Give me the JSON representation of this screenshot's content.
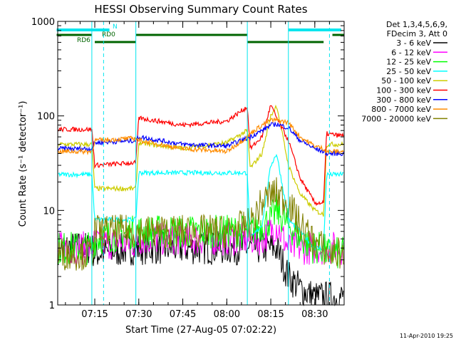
{
  "chart_data": {
    "type": "line",
    "title": "HESSI Observing Summary Count Rates",
    "xlabel": "Start Time (27-Aug-05 07:02:22)",
    "ylabel": "Count Rate (s⁻¹ detector⁻¹)",
    "footer": "11-Apr-2010 19:25",
    "y_scale": "log",
    "ylim": [
      1,
      1000
    ],
    "xlim": [
      "07:02:22",
      "08:40:00"
    ],
    "x_ticks": [
      "07:15",
      "07:30",
      "07:45",
      "08:00",
      "08:15",
      "08:30"
    ],
    "y_ticks": [
      "1",
      "10",
      "100",
      "1000"
    ],
    "grid": false,
    "legend_position": "right",
    "legend_header": [
      "Det 1,3,4,5,6,9,",
      "FDecim 3, Att 0"
    ],
    "flags": [
      {
        "label": "N",
        "color": "#00e5ee",
        "intervals": [
          [
            "07:02",
            "07:20"
          ],
          [
            "08:21",
            "08:39"
          ]
        ]
      },
      {
        "label": "RD0",
        "color": "#006400",
        "intervals": [
          [
            "07:02",
            "07:14"
          ],
          [
            "07:29",
            "08:07"
          ],
          [
            "08:36",
            "08:40"
          ]
        ]
      },
      {
        "label": "RD6",
        "color": "#006400",
        "intervals": [
          [
            "07:15",
            "07:29"
          ],
          [
            "08:07",
            "08:33"
          ]
        ]
      }
    ],
    "markers": [
      {
        "time": "07:18",
        "color": "#00e5ee",
        "style": "dashed"
      },
      {
        "time": "08:35",
        "color": "#00e5ee",
        "style": "dashed"
      },
      {
        "time": "07:14",
        "color": "#00e5ee",
        "style": "solid"
      },
      {
        "time": "07:29",
        "color": "#00e5ee",
        "style": "solid"
      },
      {
        "time": "08:07",
        "color": "#00e5ee",
        "style": "solid"
      },
      {
        "time": "08:21",
        "color": "#00e5ee",
        "style": "solid"
      }
    ],
    "x": [
      "07:02",
      "07:14",
      "07:15",
      "07:29",
      "07:30",
      "07:45",
      "08:00",
      "08:07",
      "08:08",
      "08:12",
      "08:15",
      "08:17",
      "08:21",
      "08:25",
      "08:30",
      "08:33",
      "08:34",
      "08:38"
    ],
    "series": [
      {
        "name": "3 - 6 keV",
        "color": "#000000",
        "values": [
          4,
          4,
          3.5,
          4,
          4,
          4,
          4,
          4,
          4,
          4,
          4,
          4,
          2,
          1.5,
          1.2,
          1.2,
          1.2,
          1.2
        ]
      },
      {
        "name": "6 - 12 keV",
        "color": "#ff00ff",
        "values": [
          4,
          4,
          4.5,
          4.5,
          5,
          5,
          5,
          5,
          5,
          5,
          6,
          7,
          4,
          4,
          4,
          4,
          4,
          4
        ]
      },
      {
        "name": "12 - 25 keV",
        "color": "#00ff00",
        "values": [
          4,
          4,
          5,
          6,
          6,
          6,
          6,
          6,
          6,
          7,
          8,
          10,
          7,
          5,
          4,
          4,
          3.5,
          3.5
        ]
      },
      {
        "name": "25 - 50 keV",
        "color": "#00ffff",
        "values": [
          24,
          24,
          8,
          8,
          25,
          25,
          25,
          25,
          5,
          7,
          30,
          40,
          8,
          6,
          4,
          4,
          24,
          24
        ]
      },
      {
        "name": "50 - 100 keV",
        "color": "#cccc00",
        "values": [
          50,
          50,
          17,
          17,
          52,
          45,
          52,
          70,
          28,
          40,
          100,
          130,
          30,
          15,
          10,
          9,
          50,
          50
        ]
      },
      {
        "name": "100 - 300 keV",
        "color": "#ff0000",
        "values": [
          72,
          72,
          30,
          32,
          95,
          80,
          88,
          125,
          45,
          60,
          130,
          95,
          55,
          22,
          12,
          12,
          65,
          62
        ]
      },
      {
        "name": "300 - 800 keV",
        "color": "#0000ff",
        "values": [
          45,
          45,
          52,
          55,
          60,
          50,
          48,
          58,
          60,
          70,
          80,
          82,
          75,
          55,
          45,
          42,
          40,
          40
        ]
      },
      {
        "name": "800 - 7000 keV",
        "color": "#ff8c00",
        "values": [
          42,
          42,
          55,
          58,
          55,
          45,
          42,
          60,
          65,
          80,
          90,
          90,
          85,
          60,
          48,
          45,
          42,
          42
        ]
      },
      {
        "name": "7000 - 20000 keV",
        "color": "#808000",
        "values": [
          3.5,
          3.5,
          6,
          6,
          6,
          6,
          6,
          7,
          7,
          12,
          15,
          15,
          12,
          7,
          4.5,
          4,
          3.5,
          3.5
        ]
      }
    ]
  }
}
